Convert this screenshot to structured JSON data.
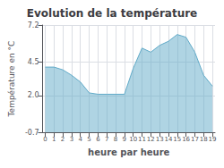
{
  "chart_data": {
    "type": "area",
    "title": "Evolution de la température",
    "xlabel": "heure par heure",
    "ylabel": "Température en °C",
    "x": [
      0,
      1,
      2,
      3,
      4,
      5,
      6,
      7,
      8,
      9,
      10,
      11,
      12,
      13,
      14,
      15,
      16,
      17,
      18,
      19
    ],
    "values": [
      4.1,
      4.1,
      3.9,
      3.5,
      3.0,
      2.2,
      2.1,
      2.1,
      2.1,
      2.1,
      4.0,
      5.5,
      5.2,
      5.7,
      6.0,
      6.5,
      6.3,
      5.2,
      3.5,
      2.7
    ],
    "color": "#60aac8",
    "xlim": [
      -0.3,
      19.3
    ],
    "xticks": [
      0,
      1,
      2,
      3,
      4,
      5,
      6,
      7,
      8,
      9,
      10,
      11,
      12,
      13,
      14,
      15,
      16,
      17,
      18,
      19
    ],
    "ylim": [
      -0.7,
      7.2
    ],
    "yticks": [
      -0.7,
      {
        "value": 2.0,
        "label": "2.0"
      },
      4.5,
      7.2
    ],
    "grid": true
  }
}
